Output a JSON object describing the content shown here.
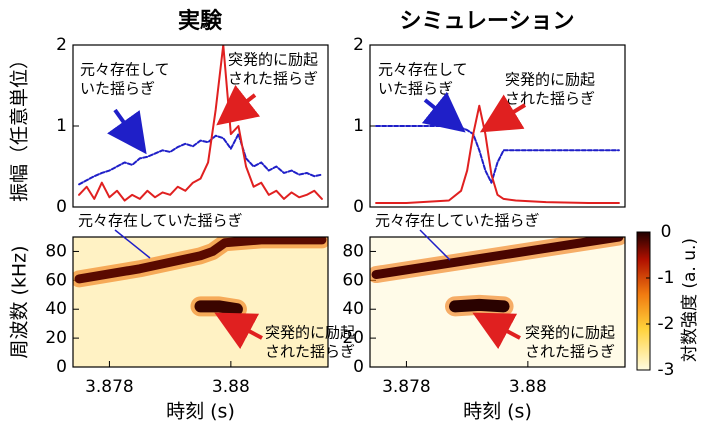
{
  "chart_data": [
    {
      "type": "line",
      "title": "実験",
      "ylabel": "振幅（任意単位）",
      "xlim": [
        3.8774,
        3.8816
      ],
      "ylim": [
        0,
        2
      ],
      "yticks": [
        0,
        1,
        2
      ],
      "x": [
        3.8775,
        3.877625,
        3.87775,
        3.877875,
        3.878,
        3.878125,
        3.87825,
        3.878375,
        3.8785,
        3.878625,
        3.87875,
        3.878875,
        3.879,
        3.879125,
        3.87925,
        3.879375,
        3.8795,
        3.879625,
        3.87975,
        3.879875,
        3.88,
        3.880125,
        3.88025,
        3.880375,
        3.8805,
        3.880625,
        3.88075,
        3.880875,
        3.881,
        3.881125,
        3.88125,
        3.881375,
        3.8815
      ],
      "series": [
        {
          "name": "元々存在していた揺らぎ",
          "color": "#1f1fc8",
          "dash": true,
          "values": [
            0.28,
            0.33,
            0.38,
            0.42,
            0.45,
            0.5,
            0.55,
            0.52,
            0.6,
            0.62,
            0.66,
            0.7,
            0.68,
            0.74,
            0.78,
            0.75,
            0.82,
            0.8,
            0.88,
            0.85,
            0.72,
            0.9,
            0.6,
            0.5,
            0.55,
            0.45,
            0.5,
            0.42,
            0.45,
            0.4,
            0.42,
            0.38,
            0.4
          ]
        },
        {
          "name": "突発的に励起された揺らぎ",
          "color": "#e02020",
          "dash": false,
          "values": [
            0.15,
            0.25,
            0.1,
            0.3,
            0.12,
            0.2,
            0.08,
            0.15,
            0.1,
            0.2,
            0.12,
            0.18,
            0.15,
            0.25,
            0.2,
            0.3,
            0.35,
            0.55,
            1.2,
            2.0,
            0.9,
            1.0,
            0.5,
            0.25,
            0.3,
            0.15,
            0.2,
            0.1,
            0.18,
            0.12,
            0.15,
            0.2,
            0.1
          ]
        }
      ],
      "annotations": [
        {
          "lines": [
            "元々存在して",
            "いた揺らぎ"
          ],
          "color": "#1f1fc8"
        },
        {
          "lines": [
            "突発的に励起",
            "された揺らぎ"
          ],
          "color": "#e02020"
        }
      ]
    },
    {
      "type": "line",
      "title": "シミュレーション",
      "xlim": [
        3.8774,
        3.8816
      ],
      "ylim": [
        0,
        2
      ],
      "yticks": [
        0,
        1,
        2
      ],
      "x": [
        3.8775,
        3.878,
        3.8787,
        3.8789,
        3.879,
        3.8791,
        3.8792,
        3.8793,
        3.8794,
        3.8795,
        3.8796,
        3.8798,
        3.8803,
        3.881,
        3.8815
      ],
      "series": [
        {
          "name": "元々存在していた揺らぎ",
          "color": "#1f1fc8",
          "dash": true,
          "values": [
            1.0,
            1.0,
            1.0,
            0.98,
            0.95,
            0.9,
            0.7,
            0.45,
            0.3,
            0.55,
            0.7,
            0.7,
            0.7,
            0.7,
            0.7
          ]
        },
        {
          "name": "突発的に励起された揺らぎ",
          "color": "#e02020",
          "dash": false,
          "values": [
            0.05,
            0.05,
            0.08,
            0.2,
            0.45,
            0.9,
            1.25,
            0.9,
            0.4,
            0.15,
            0.1,
            0.08,
            0.06,
            0.05,
            0.05
          ]
        }
      ],
      "annotations": [
        {
          "lines": [
            "元々存在して",
            "いた揺らぎ"
          ],
          "color": "#1f1fc8"
        },
        {
          "lines": [
            "突発的に励起",
            "された揺らぎ"
          ],
          "color": "#e02020"
        }
      ]
    },
    {
      "type": "spectrogram",
      "ylabel": "周波数 (kHz)",
      "xlabel": "時刻 (s)",
      "background": "#fff2c4",
      "xlim": [
        3.8774,
        3.8816
      ],
      "ylim": [
        0,
        90
      ],
      "xticks": [
        3.878,
        3.88
      ],
      "yticks": [
        0,
        20,
        40,
        60,
        80
      ],
      "series": [
        {
          "color": "#5a0a00",
          "x": [
            3.8775,
            3.8785,
            3.8795,
            3.8797,
            3.8799,
            3.8805,
            3.8815
          ],
          "values": [
            61,
            68,
            77,
            80,
            86,
            88,
            88
          ]
        },
        {
          "color": "#3a0500",
          "x": [
            3.8795,
            3.8798,
            3.8801
          ],
          "values": [
            42,
            42,
            40
          ]
        }
      ],
      "annotations": [
        {
          "lines": [
            "元々存在していた揺らぎ"
          ],
          "color": "#1f1fc8"
        },
        {
          "lines": [
            "突発的に励起",
            "された揺らぎ"
          ],
          "color": "#e02020"
        }
      ]
    },
    {
      "type": "spectrogram",
      "xlabel": "時刻 (s)",
      "background": "#fffbe8",
      "xlim": [
        3.8774,
        3.8816
      ],
      "ylim": [
        0,
        90
      ],
      "xticks": [
        3.878,
        3.88
      ],
      "yticks": [
        0,
        20,
        40,
        60,
        80
      ],
      "series": [
        {
          "color": "#4a0500",
          "x": [
            3.8775,
            3.8815
          ],
          "values": [
            64,
            90
          ]
        },
        {
          "color": "#2a0200",
          "x": [
            3.8788,
            3.8792,
            3.8796
          ],
          "values": [
            42,
            43,
            42
          ]
        }
      ],
      "annotations": [
        {
          "lines": [
            "元々存在していた揺らぎ"
          ],
          "color": "#1f1fc8"
        },
        {
          "lines": [
            "突発的に励起",
            "された揺らぎ"
          ],
          "color": "#e02020"
        }
      ]
    }
  ],
  "colorbar": {
    "label": "対数強度 (a. u.)",
    "lim": [
      -3,
      0
    ],
    "ticks": [
      0,
      -1,
      -2,
      -3
    ]
  }
}
